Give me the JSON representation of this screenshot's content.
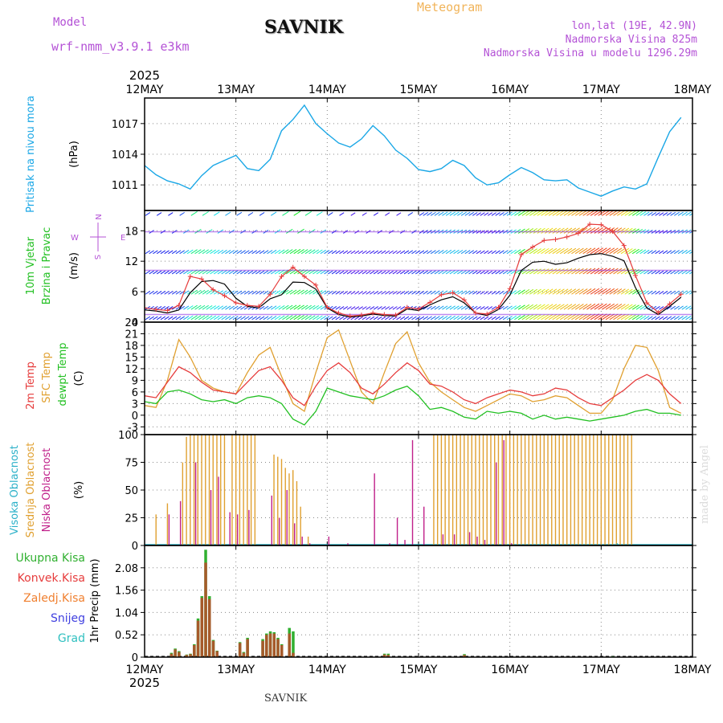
{
  "header": {
    "model_label": "Model",
    "model_name": "wrf-nmm_v3.9.1 e3km",
    "station": "SAVNIK",
    "product": "Meteogram",
    "lonlat": "lon,lat (19E, 42.9N)",
    "elevation": "Nadmorska Visina 825m",
    "model_elevation": "Nadmorska Visina u modelu 1296.29m",
    "footer_station": "SAVNIK",
    "credit": "made by Angel"
  },
  "colors": {
    "pressure": "#1aa7e6",
    "model": "#b452d6",
    "header_orange": "#f1b45a",
    "t2m": "#e63c3c",
    "sfc": "#e0a030",
    "dew": "#22c022",
    "high_cloud": "#2ab0c8",
    "mid_cloud": "#e0a030",
    "low_cloud": "#c0208a",
    "total_precip": "#30b030",
    "conv_precip": "#a65a2a",
    "frozen": "#f08030",
    "snow": "#4040e0",
    "graupel": "#30c0c0"
  },
  "chart_data": {
    "type": "meteogram",
    "x_year": "2025",
    "x_ticks": [
      "12MAY",
      "13MAY",
      "14MAY",
      "15MAY",
      "16MAY",
      "17MAY",
      "18MAY"
    ],
    "x_range_hours": [
      0,
      144
    ],
    "panels": {
      "pressure": {
        "title": "Pritisak na nivou mora",
        "ylabel": "(hPa)",
        "ylim": [
          1008.5,
          1019.5
        ],
        "ticks": [
          "1011",
          "1014",
          "1017"
        ],
        "step_hours": 3,
        "values": [
          1012.9,
          1012.0,
          1011.4,
          1011.1,
          1010.6,
          1011.9,
          1012.9,
          1013.4,
          1013.9,
          1012.6,
          1012.4,
          1013.5,
          1016.3,
          1017.4,
          1018.8,
          1017.0,
          1016.0,
          1015.1,
          1014.7,
          1015.5,
          1016.8,
          1015.8,
          1014.4,
          1013.6,
          1012.5,
          1012.3,
          1012.6,
          1013.4,
          1012.9,
          1011.7,
          1011.0,
          1011.2,
          1012.0,
          1012.7,
          1012.2,
          1011.5,
          1011.4,
          1011.5,
          1010.7,
          1010.3,
          1009.9,
          1010.4,
          1010.8,
          1010.6,
          1011.1,
          1013.7,
          1016.2,
          1017.6
        ]
      },
      "wind": {
        "title": "10m Vjetar",
        "title2": "Brzina i Pravac",
        "ylabel": "(m/s)",
        "ylim": [
          0,
          22
        ],
        "ticks": [
          "0",
          "6",
          "12",
          "18"
        ],
        "compass": {
          "n": "N",
          "s": "S",
          "e": "E",
          "w": "W"
        },
        "step_hours": 3,
        "speed": [
          2.4,
          2.2,
          1.8,
          2.4,
          5.8,
          8.0,
          8.2,
          7.5,
          4.7,
          3.1,
          2.8,
          4.6,
          5.4,
          7.9,
          7.8,
          6.5,
          2.8,
          1.5,
          1.0,
          1.2,
          1.6,
          1.3,
          1.2,
          2.6,
          2.3,
          3.4,
          4.4,
          5.0,
          3.8,
          1.8,
          1.3,
          2.5,
          5.3,
          10.2,
          11.8,
          12.0,
          11.4,
          11.7,
          12.6,
          13.3,
          13.5,
          13.0,
          12.1,
          6.8,
          2.8,
          1.5,
          3.1,
          4.9
        ],
        "gust": [
          2.8,
          2.5,
          2.3,
          3.3,
          9.0,
          8.5,
          6.4,
          5.2,
          3.8,
          3.3,
          3.1,
          5.5,
          9.0,
          10.8,
          9.0,
          7.3,
          2.9,
          1.8,
          1.2,
          1.4,
          1.8,
          1.5,
          1.4,
          2.9,
          2.6,
          3.9,
          5.4,
          5.8,
          4.4,
          1.8,
          1.6,
          2.9,
          6.6,
          13.3,
          14.8,
          16.1,
          16.3,
          16.8,
          17.5,
          19.3,
          19.2,
          17.9,
          15.1,
          9.2,
          3.8,
          1.9,
          3.6,
          5.5
        ]
      },
      "temperature": {
        "title_t2m": "2m Temp",
        "title_sfc": "SFC Temp",
        "title_dew": "dewpt Temp",
        "ylabel": "(C)",
        "ylim": [
          -5,
          24
        ],
        "ticks": [
          "-3",
          "0",
          "3",
          "6",
          "9",
          "12",
          "15",
          "18",
          "21",
          "24"
        ],
        "step_hours": 3,
        "t2m": [
          5.0,
          4.5,
          8.5,
          12.5,
          11.0,
          8.5,
          6.5,
          6.0,
          5.5,
          8.5,
          11.5,
          12.5,
          9.0,
          4.5,
          2.5,
          7.5,
          11.5,
          13.5,
          11.0,
          7.0,
          5.5,
          8.0,
          11.0,
          13.5,
          11.5,
          8.0,
          7.5,
          6.0,
          4.0,
          3.0,
          4.5,
          5.5,
          6.5,
          6.0,
          5.0,
          5.5,
          7.0,
          6.5,
          4.5,
          3.0,
          2.5,
          4.5,
          6.5,
          9.0,
          10.5,
          9.0,
          5.5,
          3.0
        ],
        "sfc": [
          2.5,
          2.0,
          9.0,
          19.5,
          15.0,
          9.0,
          7.0,
          6.0,
          5.5,
          11.0,
          15.5,
          17.5,
          10.0,
          3.0,
          1.0,
          11.0,
          20.0,
          22.0,
          14.0,
          6.0,
          3.0,
          11.0,
          18.5,
          21.5,
          13.5,
          8.5,
          6.0,
          4.0,
          2.0,
          1.0,
          2.5,
          4.0,
          5.5,
          5.0,
          3.5,
          4.0,
          5.0,
          4.5,
          2.5,
          0.5,
          0.5,
          4.0,
          12.0,
          18.0,
          17.5,
          11.5,
          2.0,
          0.5
        ],
        "dew": [
          3.5,
          3.0,
          6.0,
          6.5,
          5.5,
          4.0,
          3.5,
          4.0,
          3.0,
          4.5,
          5.0,
          4.5,
          3.0,
          -1.0,
          -2.5,
          1.0,
          7.0,
          6.0,
          5.0,
          4.5,
          4.0,
          5.0,
          6.5,
          7.5,
          5.0,
          1.5,
          2.0,
          1.0,
          -0.5,
          -1.0,
          1.0,
          0.5,
          1.0,
          0.5,
          -1.0,
          0.0,
          -1.0,
          -0.5,
          -1.0,
          -1.5,
          -1.0,
          -0.5,
          0.0,
          1.0,
          1.5,
          0.5,
          0.5,
          0.0
        ]
      },
      "clouds": {
        "title_high": "Visoka Oblacnost",
        "title_mid": "Srednja Oblacnost",
        "title_low": "Niska Oblacnost",
        "ylabel": "(%)",
        "ylim": [
          0,
          100
        ],
        "ticks": [
          "0",
          "25",
          "50",
          "75",
          "100"
        ],
        "high": [
          [
            123,
            1
          ],
          [
            124,
            2
          ],
          [
            126,
            1
          ],
          [
            136,
            1
          ],
          [
            138,
            1
          ]
        ],
        "mid": [
          [
            3,
            28
          ],
          [
            6,
            38
          ],
          [
            10,
            75
          ],
          [
            11,
            98
          ],
          [
            12,
            100
          ],
          [
            13,
            100
          ],
          [
            14,
            100
          ],
          [
            15,
            100
          ],
          [
            16,
            100
          ],
          [
            17,
            100
          ],
          [
            18,
            100
          ],
          [
            19,
            100
          ],
          [
            20,
            100
          ],
          [
            21,
            100
          ],
          [
            23,
            100
          ],
          [
            24,
            100
          ],
          [
            25,
            100
          ],
          [
            26,
            100
          ],
          [
            27,
            100
          ],
          [
            28,
            100
          ],
          [
            29,
            100
          ],
          [
            31,
            0
          ],
          [
            32,
            0
          ],
          [
            34,
            82
          ],
          [
            35,
            80
          ],
          [
            36,
            78
          ],
          [
            37,
            70
          ],
          [
            38,
            65
          ],
          [
            39,
            68
          ],
          [
            40,
            58
          ],
          [
            41,
            35
          ],
          [
            42,
            0
          ],
          [
            43,
            8
          ],
          [
            76,
            100
          ],
          [
            77,
            100
          ],
          [
            78,
            100
          ],
          [
            79,
            100
          ],
          [
            80,
            100
          ],
          [
            81,
            100
          ],
          [
            82,
            100
          ],
          [
            83,
            100
          ],
          [
            84,
            100
          ],
          [
            85,
            100
          ],
          [
            86,
            100
          ],
          [
            87,
            100
          ],
          [
            88,
            100
          ],
          [
            89,
            100
          ],
          [
            90,
            100
          ],
          [
            91,
            100
          ],
          [
            92,
            100
          ],
          [
            93,
            100
          ],
          [
            94,
            100
          ],
          [
            95,
            100
          ],
          [
            96,
            100
          ],
          [
            97,
            100
          ],
          [
            98,
            100
          ],
          [
            99,
            100
          ],
          [
            100,
            100
          ],
          [
            101,
            100
          ],
          [
            102,
            100
          ],
          [
            103,
            100
          ],
          [
            104,
            100
          ],
          [
            105,
            100
          ],
          [
            106,
            100
          ],
          [
            107,
            100
          ],
          [
            108,
            100
          ],
          [
            109,
            100
          ],
          [
            110,
            100
          ],
          [
            111,
            100
          ],
          [
            112,
            100
          ],
          [
            113,
            100
          ],
          [
            114,
            100
          ],
          [
            115,
            100
          ],
          [
            116,
            100
          ],
          [
            117,
            100
          ],
          [
            118,
            100
          ],
          [
            119,
            100
          ],
          [
            120,
            100
          ],
          [
            121,
            100
          ],
          [
            122,
            100
          ],
          [
            123,
            100
          ],
          [
            124,
            100
          ],
          [
            125,
            100
          ],
          [
            126,
            100
          ],
          [
            127,
            100
          ],
          [
            128,
            100
          ]
        ],
        "low": [
          [
            6,
            28
          ],
          [
            9,
            40
          ],
          [
            13,
            75
          ],
          [
            17,
            50
          ],
          [
            19,
            62
          ],
          [
            22,
            30
          ],
          [
            24,
            28
          ],
          [
            27,
            32
          ],
          [
            29,
            0
          ],
          [
            30,
            0
          ],
          [
            33,
            45
          ],
          [
            35,
            25
          ],
          [
            37,
            50
          ],
          [
            39,
            20
          ],
          [
            41,
            8
          ],
          [
            43,
            2
          ],
          [
            48,
            8
          ],
          [
            53,
            2
          ],
          [
            60,
            65
          ],
          [
            64,
            2
          ],
          [
            66,
            25
          ],
          [
            68,
            5
          ],
          [
            70,
            95
          ],
          [
            73,
            35
          ],
          [
            78,
            10
          ],
          [
            81,
            10
          ],
          [
            85,
            12
          ],
          [
            87,
            8
          ],
          [
            89,
            5
          ],
          [
            92,
            75
          ],
          [
            94,
            95
          ],
          [
            96,
            2
          ]
        ]
      },
      "precip": {
        "title_total": "Ukupna Kisa",
        "title_conv": "Konvek.Kisa",
        "title_frozen": "Zaledj.Kisa",
        "title_snow": "Snijeg",
        "title_graupel": "Grad",
        "ylabel": "1hr Precip (mm)",
        "ylim": [
          0,
          2.6
        ],
        "ticks": [
          "0",
          "0.52",
          "1.04",
          "1.56",
          "2.08"
        ],
        "total": [
          [
            7,
            0.1
          ],
          [
            8,
            0.2
          ],
          [
            9,
            0.14
          ],
          [
            11,
            0.06
          ],
          [
            12,
            0.08
          ],
          [
            13,
            0.3
          ],
          [
            14,
            0.9
          ],
          [
            15,
            1.42
          ],
          [
            16,
            2.5
          ],
          [
            17,
            1.42
          ],
          [
            18,
            0.4
          ],
          [
            19,
            0.15
          ],
          [
            25,
            0.35
          ],
          [
            26,
            0.12
          ],
          [
            27,
            0.45
          ],
          [
            31,
            0.42
          ],
          [
            32,
            0.55
          ],
          [
            33,
            0.6
          ],
          [
            34,
            0.58
          ],
          [
            35,
            0.45
          ],
          [
            36,
            0.3
          ],
          [
            38,
            0.68
          ],
          [
            39,
            0.6
          ],
          [
            63,
            0.08
          ],
          [
            64,
            0.08
          ],
          [
            84,
            0.07
          ],
          [
            123,
            0.02
          ]
        ],
        "conv": [
          [
            7,
            0.08
          ],
          [
            8,
            0.18
          ],
          [
            9,
            0.12
          ],
          [
            11,
            0.05
          ],
          [
            12,
            0.07
          ],
          [
            13,
            0.28
          ],
          [
            14,
            0.85
          ],
          [
            15,
            1.38
          ],
          [
            16,
            2.2
          ],
          [
            17,
            1.35
          ],
          [
            18,
            0.38
          ],
          [
            19,
            0.14
          ],
          [
            25,
            0.33
          ],
          [
            26,
            0.1
          ],
          [
            27,
            0.42
          ],
          [
            31,
            0.38
          ],
          [
            32,
            0.52
          ],
          [
            33,
            0.55
          ],
          [
            34,
            0.55
          ],
          [
            35,
            0.42
          ],
          [
            36,
            0.28
          ],
          [
            38,
            0.55
          ],
          [
            39,
            0.1
          ],
          [
            63,
            0.06
          ],
          [
            64,
            0.05
          ],
          [
            84,
            0.05
          ]
        ]
      }
    }
  }
}
